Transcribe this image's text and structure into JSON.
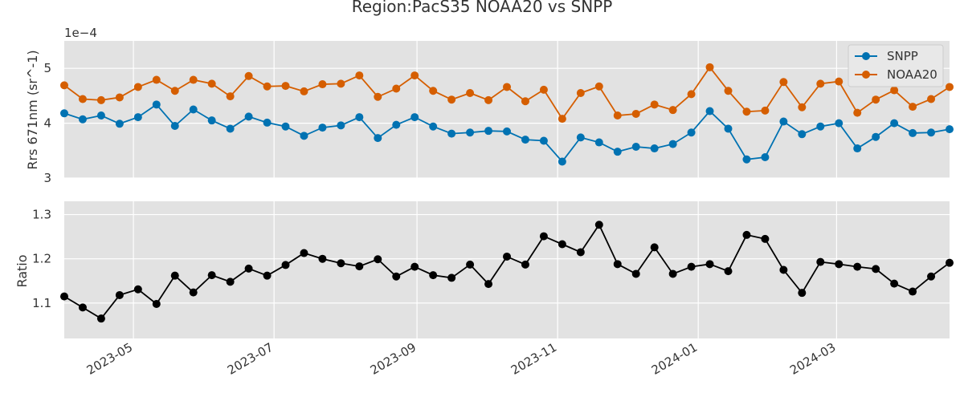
{
  "chart_data": {
    "type": "line",
    "title": "Region:PacS35 NOAA20 vs SNPP",
    "x": [
      "2023-04-01",
      "2023-04-09",
      "2023-04-17",
      "2023-04-25",
      "2023-05-03",
      "2023-05-11",
      "2023-05-19",
      "2023-05-27",
      "2023-06-04",
      "2023-06-12",
      "2023-06-20",
      "2023-06-28",
      "2023-07-06",
      "2023-07-14",
      "2023-07-22",
      "2023-07-30",
      "2023-08-07",
      "2023-08-15",
      "2023-08-23",
      "2023-08-31",
      "2023-09-08",
      "2023-09-16",
      "2023-09-24",
      "2023-10-02",
      "2023-10-10",
      "2023-10-18",
      "2023-10-26",
      "2023-11-03",
      "2023-11-11",
      "2023-11-19",
      "2023-11-27",
      "2023-12-05",
      "2023-12-13",
      "2023-12-21",
      "2023-12-29",
      "2024-01-06",
      "2024-01-14",
      "2024-01-22",
      "2024-01-30",
      "2024-02-07",
      "2024-02-15",
      "2024-02-23",
      "2024-03-02",
      "2024-03-10",
      "2024-03-18",
      "2024-03-26",
      "2024-04-03",
      "2024-04-11",
      "2024-04-19"
    ],
    "xlim": [
      "2023-04-01",
      "2024-04-19"
    ],
    "xticks": [
      "2023-05",
      "2023-07",
      "2023-09",
      "2023-11",
      "2024-01",
      "2024-03"
    ],
    "panels": [
      {
        "ylabel": "Rrs 671nm (sr^-1)",
        "offset_label": "1e−4",
        "ylim": [
          3.0,
          5.5
        ],
        "yticks": [
          3,
          4,
          5
        ],
        "legend_position": "top-right",
        "series": [
          {
            "name": "SNPP",
            "color": "#0072b2",
            "values": [
              4.18,
              4.07,
              4.14,
              3.99,
              4.11,
              4.34,
              3.95,
              4.25,
              4.05,
              3.9,
              4.12,
              4.01,
              3.94,
              3.77,
              3.92,
              3.96,
              4.11,
              3.73,
              3.97,
              4.11,
              3.94,
              3.81,
              3.83,
              3.86,
              3.85,
              3.7,
              3.68,
              3.3,
              3.74,
              3.65,
              3.48,
              3.57,
              3.54,
              3.62,
              3.83,
              4.22,
              3.9,
              3.34,
              3.38,
              4.03,
              3.8,
              3.94,
              4.0,
              3.54,
              3.75,
              4.0,
              3.82,
              3.83,
              3.89
            ]
          },
          {
            "name": "NOAA20",
            "color": "#d55e00",
            "values": [
              4.69,
              4.44,
              4.42,
              4.47,
              4.66,
              4.79,
              4.59,
              4.79,
              4.72,
              4.49,
              4.86,
              4.67,
              4.68,
              4.58,
              4.71,
              4.72,
              4.87,
              4.48,
              4.63,
              4.87,
              4.59,
              4.43,
              4.55,
              4.42,
              4.66,
              4.4,
              4.61,
              4.08,
              4.55,
              4.67,
              4.14,
              4.17,
              4.34,
              4.24,
              4.53,
              5.02,
              4.59,
              4.21,
              4.23,
              4.75,
              4.29,
              4.72,
              4.76,
              4.19,
              4.43,
              4.6,
              4.3,
              4.44,
              4.66
            ]
          }
        ]
      },
      {
        "ylabel": "Ratio",
        "ylim": [
          1.02,
          1.33
        ],
        "yticks": [
          "1.1",
          "1.2",
          "1.3"
        ],
        "series": [
          {
            "name": "",
            "color": "#000000",
            "values": [
              1.115,
              1.09,
              1.065,
              1.118,
              1.131,
              1.098,
              1.162,
              1.124,
              1.163,
              1.148,
              1.178,
              1.162,
              1.186,
              1.213,
              1.2,
              1.19,
              1.183,
              1.199,
              1.16,
              1.182,
              1.163,
              1.157,
              1.187,
              1.143,
              1.205,
              1.187,
              1.251,
              1.233,
              1.215,
              1.277,
              1.188,
              1.166,
              1.226,
              1.166,
              1.182,
              1.188,
              1.172,
              1.254,
              1.245,
              1.175,
              1.123,
              1.193,
              1.188,
              1.182,
              1.177,
              1.144,
              1.126,
              1.16,
              1.191
            ]
          }
        ]
      }
    ]
  }
}
